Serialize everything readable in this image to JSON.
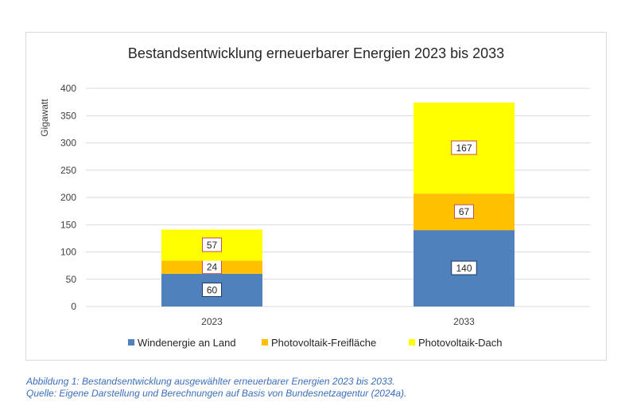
{
  "chart_data": {
    "type": "bar",
    "stacked": true,
    "title": "Bestandsentwicklung erneuerbarer Energien 2023 bis 2033",
    "ylabel": "Gigawatt",
    "xlabel": "",
    "ylim": [
      0,
      400
    ],
    "yticks": [
      0,
      50,
      100,
      150,
      200,
      250,
      300,
      350,
      400
    ],
    "categories": [
      "2023",
      "2033"
    ],
    "series": [
      {
        "name": "Windenergie an Land",
        "values": [
          60,
          140
        ],
        "color": "#4f81bd"
      },
      {
        "name": "Photovoltaik-Freifläche",
        "values": [
          24,
          67
        ],
        "color": "#ffc000"
      },
      {
        "name": "Photovoltaik-Dach",
        "values": [
          57,
          167
        ],
        "color": "#ffff00"
      }
    ],
    "grid": true,
    "legend": "bottom"
  },
  "caption": {
    "line1": "Abbildung 1: Bestandsentwicklung ausgewählter erneuerbarer Energien 2023 bis 2033.",
    "line2": "Quelle: Eigene Darstellung und Berechnungen auf Basis von Bundesnetzagentur (2024a)."
  }
}
